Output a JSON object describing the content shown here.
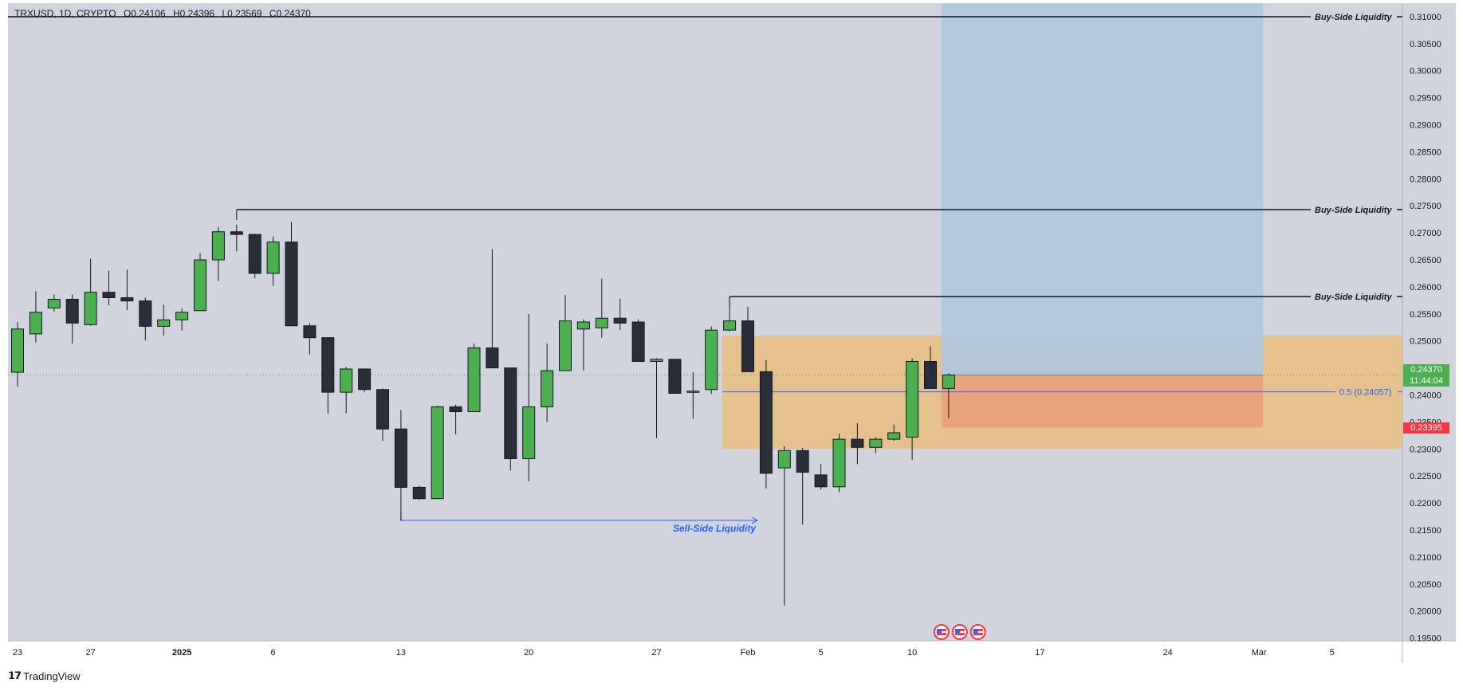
{
  "header": {
    "symbol": "TRXUSD, 1D, CRYPTO",
    "open": "O0.24106",
    "high": "H0.24396",
    "low": "L0.23569",
    "close": "C0.24370"
  },
  "brand": {
    "name": "TradingView"
  },
  "price_badges": {
    "last_price": "0.24370",
    "countdown": "11:44:04",
    "stop_price": "0.23395"
  },
  "colors": {
    "background": "#d1d4dc",
    "bull": "#4caf50",
    "bear": "#2a2e39",
    "wick": "#131722",
    "target_zone": "#adc8e0",
    "premium_zone": "#e8bd7f",
    "stop_zone": "#ea9f7b",
    "fib_line": "#2962ff",
    "last_price_badge": "#4caf50",
    "stop_badge": "#f23645"
  },
  "chart_data": {
    "type": "candlestick",
    "symbol": "TRXUSD",
    "interval": "1D",
    "exchange": "CRYPTO",
    "ylim": [
      0.1945,
      0.3125
    ],
    "y_ticks": [
      "0.31000",
      "0.30500",
      "0.30000",
      "0.29500",
      "0.29000",
      "0.28500",
      "0.28000",
      "0.27500",
      "0.27000",
      "0.26500",
      "0.26000",
      "0.25500",
      "0.25000",
      "0.24500",
      "0.24000",
      "0.23500",
      "0.23000",
      "0.22500",
      "0.22000",
      "0.21500",
      "0.21000",
      "0.20500",
      "0.20000",
      "0.19500"
    ],
    "x_ticks": [
      {
        "date": "2024-12-23",
        "label": "23",
        "bold": false
      },
      {
        "date": "2024-12-27",
        "label": "27",
        "bold": false
      },
      {
        "date": "2025-01-01",
        "label": "2025",
        "bold": true
      },
      {
        "date": "2025-01-06",
        "label": "6",
        "bold": false
      },
      {
        "date": "2025-01-13",
        "label": "13",
        "bold": false
      },
      {
        "date": "2025-01-20",
        "label": "20",
        "bold": false
      },
      {
        "date": "2025-01-27",
        "label": "27",
        "bold": false
      },
      {
        "date": "2025-02-01",
        "label": "Feb",
        "bold": false
      },
      {
        "date": "2025-02-05",
        "label": "5",
        "bold": false
      },
      {
        "date": "2025-02-10",
        "label": "10",
        "bold": false
      },
      {
        "date": "2025-02-17",
        "label": "17",
        "bold": false
      },
      {
        "date": "2025-02-24",
        "label": "24",
        "bold": false
      },
      {
        "date": "2025-03-01",
        "label": "Mar",
        "bold": false
      },
      {
        "date": "2025-03-05",
        "label": "5",
        "bold": false
      }
    ],
    "candles": [
      {
        "date": "2024-12-23",
        "o": 0.2442,
        "h": 0.2535,
        "l": 0.2415,
        "c": 0.2522
      },
      {
        "date": "2024-12-24",
        "o": 0.2513,
        "h": 0.2592,
        "l": 0.2497,
        "c": 0.2553
      },
      {
        "date": "2024-12-25",
        "o": 0.2561,
        "h": 0.2586,
        "l": 0.2554,
        "c": 0.2577
      },
      {
        "date": "2024-12-26",
        "o": 0.2577,
        "h": 0.2586,
        "l": 0.2495,
        "c": 0.2533
      },
      {
        "date": "2024-12-27",
        "o": 0.253,
        "h": 0.2652,
        "l": 0.2528,
        "c": 0.259
      },
      {
        "date": "2024-12-28",
        "o": 0.259,
        "h": 0.263,
        "l": 0.2566,
        "c": 0.258
      },
      {
        "date": "2024-12-29",
        "o": 0.258,
        "h": 0.2632,
        "l": 0.2557,
        "c": 0.2574
      },
      {
        "date": "2024-12-30",
        "o": 0.2574,
        "h": 0.258,
        "l": 0.2501,
        "c": 0.2527
      },
      {
        "date": "2024-12-31",
        "o": 0.2527,
        "h": 0.2567,
        "l": 0.251,
        "c": 0.2539
      },
      {
        "date": "2025-01-01",
        "o": 0.2539,
        "h": 0.256,
        "l": 0.2519,
        "c": 0.2553
      },
      {
        "date": "2025-01-02",
        "o": 0.2556,
        "h": 0.2663,
        "l": 0.2556,
        "c": 0.265
      },
      {
        "date": "2025-01-03",
        "o": 0.265,
        "h": 0.2711,
        "l": 0.2611,
        "c": 0.2702
      },
      {
        "date": "2025-01-04",
        "o": 0.2702,
        "h": 0.2715,
        "l": 0.2666,
        "c": 0.2697
      },
      {
        "date": "2025-01-05",
        "o": 0.2697,
        "h": 0.2697,
        "l": 0.2616,
        "c": 0.2625
      },
      {
        "date": "2025-01-06",
        "o": 0.2625,
        "h": 0.2693,
        "l": 0.2602,
        "c": 0.2683
      },
      {
        "date": "2025-01-07",
        "o": 0.2683,
        "h": 0.272,
        "l": 0.2528,
        "c": 0.2528
      },
      {
        "date": "2025-01-08",
        "o": 0.2528,
        "h": 0.2533,
        "l": 0.2475,
        "c": 0.2506
      },
      {
        "date": "2025-01-09",
        "o": 0.2506,
        "h": 0.2506,
        "l": 0.2365,
        "c": 0.2405
      },
      {
        "date": "2025-01-10",
        "o": 0.2405,
        "h": 0.2452,
        "l": 0.2366,
        "c": 0.2448
      },
      {
        "date": "2025-01-11",
        "o": 0.2448,
        "h": 0.2448,
        "l": 0.2405,
        "c": 0.241
      },
      {
        "date": "2025-01-12",
        "o": 0.241,
        "h": 0.2412,
        "l": 0.2315,
        "c": 0.2337
      },
      {
        "date": "2025-01-13",
        "o": 0.2337,
        "h": 0.2372,
        "l": 0.2167,
        "c": 0.2229
      },
      {
        "date": "2025-01-14",
        "o": 0.2229,
        "h": 0.2232,
        "l": 0.2206,
        "c": 0.2208
      },
      {
        "date": "2025-01-15",
        "o": 0.2208,
        "h": 0.238,
        "l": 0.2208,
        "c": 0.2378
      },
      {
        "date": "2025-01-16",
        "o": 0.2378,
        "h": 0.2382,
        "l": 0.2327,
        "c": 0.2369
      },
      {
        "date": "2025-01-17",
        "o": 0.2369,
        "h": 0.2495,
        "l": 0.2369,
        "c": 0.2487
      },
      {
        "date": "2025-01-18",
        "o": 0.2487,
        "h": 0.267,
        "l": 0.245,
        "c": 0.245
      },
      {
        "date": "2025-01-19",
        "o": 0.245,
        "h": 0.245,
        "l": 0.226,
        "c": 0.2282
      },
      {
        "date": "2025-01-20",
        "o": 0.2282,
        "h": 0.255,
        "l": 0.224,
        "c": 0.2378
      },
      {
        "date": "2025-01-21",
        "o": 0.2378,
        "h": 0.2495,
        "l": 0.235,
        "c": 0.2445
      },
      {
        "date": "2025-01-22",
        "o": 0.2445,
        "h": 0.2585,
        "l": 0.2445,
        "c": 0.2537
      },
      {
        "date": "2025-01-23",
        "o": 0.2522,
        "h": 0.254,
        "l": 0.2445,
        "c": 0.2535
      },
      {
        "date": "2025-01-24",
        "o": 0.2524,
        "h": 0.2615,
        "l": 0.2506,
        "c": 0.2542
      },
      {
        "date": "2025-01-25",
        "o": 0.2542,
        "h": 0.2578,
        "l": 0.252,
        "c": 0.2533
      },
      {
        "date": "2025-01-26",
        "o": 0.2535,
        "h": 0.254,
        "l": 0.2462,
        "c": 0.2462
      },
      {
        "date": "2025-01-27",
        "o": 0.2462,
        "h": 0.2468,
        "l": 0.232,
        "c": 0.2466
      },
      {
        "date": "2025-01-28",
        "o": 0.2466,
        "h": 0.2466,
        "l": 0.2403,
        "c": 0.2403
      },
      {
        "date": "2025-01-29",
        "o": 0.2407,
        "h": 0.2442,
        "l": 0.2356,
        "c": 0.2407
      },
      {
        "date": "2025-01-30",
        "o": 0.241,
        "h": 0.2527,
        "l": 0.2402,
        "c": 0.252
      },
      {
        "date": "2025-01-31",
        "o": 0.252,
        "h": 0.258,
        "l": 0.2518,
        "c": 0.2537
      },
      {
        "date": "2025-02-01",
        "o": 0.2537,
        "h": 0.2563,
        "l": 0.2443,
        "c": 0.2443
      },
      {
        "date": "2025-02-02",
        "o": 0.2443,
        "h": 0.2465,
        "l": 0.2227,
        "c": 0.2255
      },
      {
        "date": "2025-02-03",
        "o": 0.2265,
        "h": 0.2305,
        "l": 0.201,
        "c": 0.2297
      },
      {
        "date": "2025-02-04",
        "o": 0.2297,
        "h": 0.2302,
        "l": 0.216,
        "c": 0.2257
      },
      {
        "date": "2025-02-05",
        "o": 0.2252,
        "h": 0.2272,
        "l": 0.2225,
        "c": 0.223
      },
      {
        "date": "2025-02-06",
        "o": 0.223,
        "h": 0.2328,
        "l": 0.222,
        "c": 0.2318
      },
      {
        "date": "2025-02-07",
        "o": 0.2318,
        "h": 0.2348,
        "l": 0.2272,
        "c": 0.2303
      },
      {
        "date": "2025-02-08",
        "o": 0.2303,
        "h": 0.2322,
        "l": 0.2292,
        "c": 0.2318
      },
      {
        "date": "2025-02-09",
        "o": 0.2318,
        "h": 0.2345,
        "l": 0.2315,
        "c": 0.233
      },
      {
        "date": "2025-02-10",
        "o": 0.2322,
        "h": 0.2468,
        "l": 0.228,
        "c": 0.2462
      },
      {
        "date": "2025-02-11",
        "o": 0.2462,
        "h": 0.249,
        "l": 0.2412,
        "c": 0.2412
      },
      {
        "date": "2025-02-12",
        "o": 0.2412,
        "h": 0.244,
        "l": 0.2357,
        "c": 0.2437
      }
    ],
    "annotations": [
      {
        "type": "hline",
        "label": "Buy-Side Liquidity",
        "price": 0.31,
        "from": "2024-12-23",
        "to_right": true
      },
      {
        "type": "hline",
        "label": "Buy-Side Liquidity",
        "price": 0.2743,
        "from": "2025-01-04",
        "to_right": true
      },
      {
        "type": "hline",
        "label": "Buy-Side Liquidity",
        "price": 0.2582,
        "from": "2025-01-31",
        "to_right": true
      },
      {
        "type": "ray",
        "label": "Sell-Side Liquidity",
        "price": 0.2168,
        "from": "2025-01-13",
        "to": "2025-02-01"
      },
      {
        "type": "fib",
        "label": "0.5 (0.24057)",
        "price": 0.24057,
        "from": "2025-01-31"
      },
      {
        "type": "zone",
        "name": "premium",
        "top": 0.251,
        "bottom": 0.23,
        "from": "2025-01-31",
        "to_right": true
      },
      {
        "type": "position",
        "entry": 0.2437,
        "stop": 0.23395,
        "target": 0.3125,
        "from": "2025-02-12",
        "to": "2025-03-01"
      }
    ],
    "last_price": 0.2437,
    "event_markers": [
      "2025-02-12",
      "2025-02-13",
      "2025-02-14"
    ]
  }
}
